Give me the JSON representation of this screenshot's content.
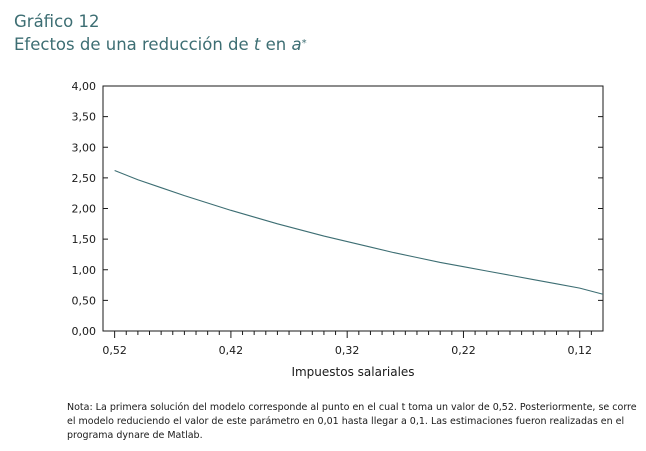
{
  "header": {
    "label": "Gráfico 12",
    "title_prefix": "Efectos de una reducción de ",
    "title_var1": "t",
    "title_mid": " en ",
    "title_var2": "a",
    "title_sup": "*"
  },
  "chart_data": {
    "type": "line",
    "xlabel": "Impuestos salariales",
    "ylabel": "",
    "title": "",
    "x_reversed": true,
    "xlim": [
      0.53,
      0.1
    ],
    "ylim": [
      0,
      4
    ],
    "x_tick_values": [
      0.52,
      0.42,
      0.32,
      0.22,
      0.12
    ],
    "x_tick_labels": [
      "0,52",
      "0,42",
      "0,32",
      "0,22",
      "0,12"
    ],
    "y_tick_values": [
      0,
      0.5,
      1,
      1.5,
      2,
      2.5,
      3,
      3.5,
      4
    ],
    "y_tick_labels": [
      "0,00",
      "0,50",
      "1,00",
      "1,50",
      "2,00",
      "2,50",
      "3,00",
      "3,50",
      "4,00"
    ],
    "grid": false,
    "line_color": "#3d6e73",
    "series": [
      {
        "name": "",
        "x": [
          0.52,
          0.5,
          0.48,
          0.46,
          0.44,
          0.42,
          0.4,
          0.38,
          0.36,
          0.34,
          0.32,
          0.3,
          0.28,
          0.26,
          0.24,
          0.22,
          0.2,
          0.18,
          0.16,
          0.14,
          0.12,
          0.1
        ],
        "y": [
          2.62,
          2.47,
          2.34,
          2.21,
          2.09,
          1.97,
          1.86,
          1.75,
          1.65,
          1.55,
          1.46,
          1.37,
          1.28,
          1.2,
          1.12,
          1.05,
          0.98,
          0.91,
          0.84,
          0.77,
          0.7,
          0.6
        ]
      }
    ]
  },
  "note": "Nota: La primera solución del modelo corresponde al punto en el cual t toma un valor de 0,52. Posteriormente, se corre el modelo reduciendo el valor de este parámetro en 0,01 hasta llegar a 0,1. Las estimaciones fueron realizadas en el programa dynare de Matlab."
}
